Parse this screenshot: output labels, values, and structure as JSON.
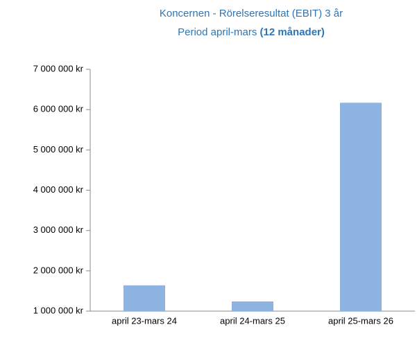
{
  "chart_data": {
    "type": "bar",
    "title": "Koncernen - Rörelseresultat (EBIT) 3 år",
    "subtitle": "Period april-mars",
    "subtitle_emphasis": "(12 månader)",
    "categories": [
      "april 23-mars 24",
      "april 24-mars 25",
      "april 25-mars 26"
    ],
    "values": [
      1640000,
      1240000,
      6170000
    ],
    "color": "#8db3e2",
    "ylim": [
      1000000,
      7000000
    ],
    "yticks": [
      {
        "value": 1000000,
        "label": "1 000 000 kr"
      },
      {
        "value": 2000000,
        "label": "2 000 000 kr"
      },
      {
        "value": 3000000,
        "label": "3 000 000 kr"
      },
      {
        "value": 4000000,
        "label": "4 000 000 kr"
      },
      {
        "value": 5000000,
        "label": "5 000 000 kr"
      },
      {
        "value": 6000000,
        "label": "6 000 000 kr"
      },
      {
        "value": 7000000,
        "label": "7 000 000 kr"
      }
    ],
    "grid": false
  }
}
